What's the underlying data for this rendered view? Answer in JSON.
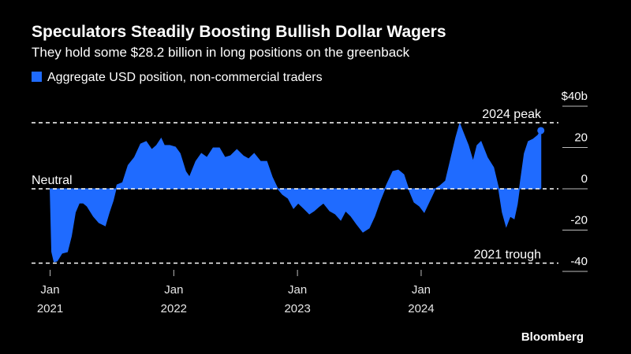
{
  "chart_data": {
    "type": "area",
    "title": "Speculators Steadily Boosting Bullish Dollar Wagers",
    "subtitle": "They hold some $28.2 billion in long positions on the greenback",
    "source": "Bloomberg",
    "x": [
      2021.0,
      2021.013,
      2021.032,
      2021.057,
      2021.096,
      2021.14,
      2021.172,
      2021.204,
      2021.236,
      2021.268,
      2021.299,
      2021.35,
      2021.395,
      2021.446,
      2021.478,
      2021.51,
      2021.541,
      2021.586,
      2021.631,
      2021.682,
      2021.732,
      2021.777,
      2021.822,
      2021.86,
      2021.898,
      2021.924,
      2021.968,
      2022.013,
      2022.051,
      2022.096,
      2022.127,
      2022.178,
      2022.223,
      2022.268,
      2022.318,
      2022.369,
      2022.414,
      2022.459,
      2022.51,
      2022.561,
      2022.605,
      2022.65,
      2022.701,
      2022.752,
      2022.796,
      2022.841,
      2022.879,
      2022.924,
      2022.968,
      2023.006,
      2023.051,
      2023.096,
      2023.134,
      2023.178,
      2023.21,
      2023.261,
      2023.306,
      2023.35,
      2023.389,
      2023.433,
      2023.478,
      2023.529,
      2023.58,
      2023.624,
      2023.669,
      2023.72,
      2023.771,
      2023.815,
      2023.86,
      2023.898,
      2023.943,
      2023.987,
      2024.025,
      2024.07,
      2024.115,
      2024.153,
      2024.197,
      2024.242,
      2024.28,
      2024.312,
      2024.344,
      2024.382,
      2024.42,
      2024.452,
      2024.484,
      2024.535,
      2024.586,
      2024.624,
      2024.656,
      2024.688,
      2024.72,
      2024.752,
      2024.777,
      2024.803,
      2024.834,
      2024.866,
      2024.904,
      2024.943,
      2024.968
    ],
    "series": [
      {
        "name": "Aggregate USD position, non-commercial traders",
        "color": "#1f6bff",
        "values": [
          0,
          -30.5,
          -35.4,
          -35.0,
          -31.2,
          -30.5,
          -22.9,
          -11.4,
          -6.9,
          -6.9,
          -8.4,
          -13.3,
          -16.4,
          -17.9,
          -11.4,
          -5.7,
          1.9,
          3.0,
          11.4,
          15.2,
          21.7,
          22.9,
          19.0,
          21.0,
          24.4,
          21.0,
          21.0,
          20.2,
          17.1,
          8.4,
          5.7,
          13.3,
          17.1,
          15.2,
          19.8,
          19.8,
          15.2,
          16.0,
          19.0,
          16.0,
          14.5,
          17.1,
          13.3,
          13.3,
          5.7,
          0,
          -2.7,
          -4.6,
          -9.5,
          -6.9,
          -9.5,
          -12.2,
          -10.7,
          -8.4,
          -6.9,
          -10.7,
          -12.2,
          -15.2,
          -10.7,
          -13.3,
          -17.1,
          -21.0,
          -19.0,
          -13.3,
          -5.7,
          1.9,
          8.4,
          9.1,
          6.9,
          0,
          -6.5,
          -8.4,
          -11.4,
          -5.7,
          0,
          1.5,
          3.8,
          15.2,
          24.8,
          31.6,
          26.7,
          21.0,
          13.3,
          21.0,
          22.9,
          15.2,
          10.3,
          0.8,
          -11.4,
          -18.3,
          -13.3,
          -14.5,
          -7.6,
          3.8,
          17.1,
          22.9,
          24.0,
          25.9,
          28.2
        ]
      }
    ],
    "xlim": [
      2020.85,
      2025.11
    ],
    "xticks": [
      {
        "value": 2021,
        "label": "Jan 2021"
      },
      {
        "value": 2022,
        "label": "Jan 2022"
      },
      {
        "value": 2023,
        "label": "Jan 2023"
      },
      {
        "value": 2024,
        "label": "Jan 2024"
      }
    ],
    "ylim": [
      -40,
      40
    ],
    "yticks": [
      {
        "value": 40,
        "label": "$40b"
      },
      20,
      0,
      -20,
      -40
    ],
    "annotations": [
      {
        "label": "2024 peak",
        "value": 32
      },
      {
        "label": "Neutral",
        "value": 0
      },
      {
        "label": "2021 trough",
        "value": -36
      }
    ],
    "legend": "top-left"
  }
}
